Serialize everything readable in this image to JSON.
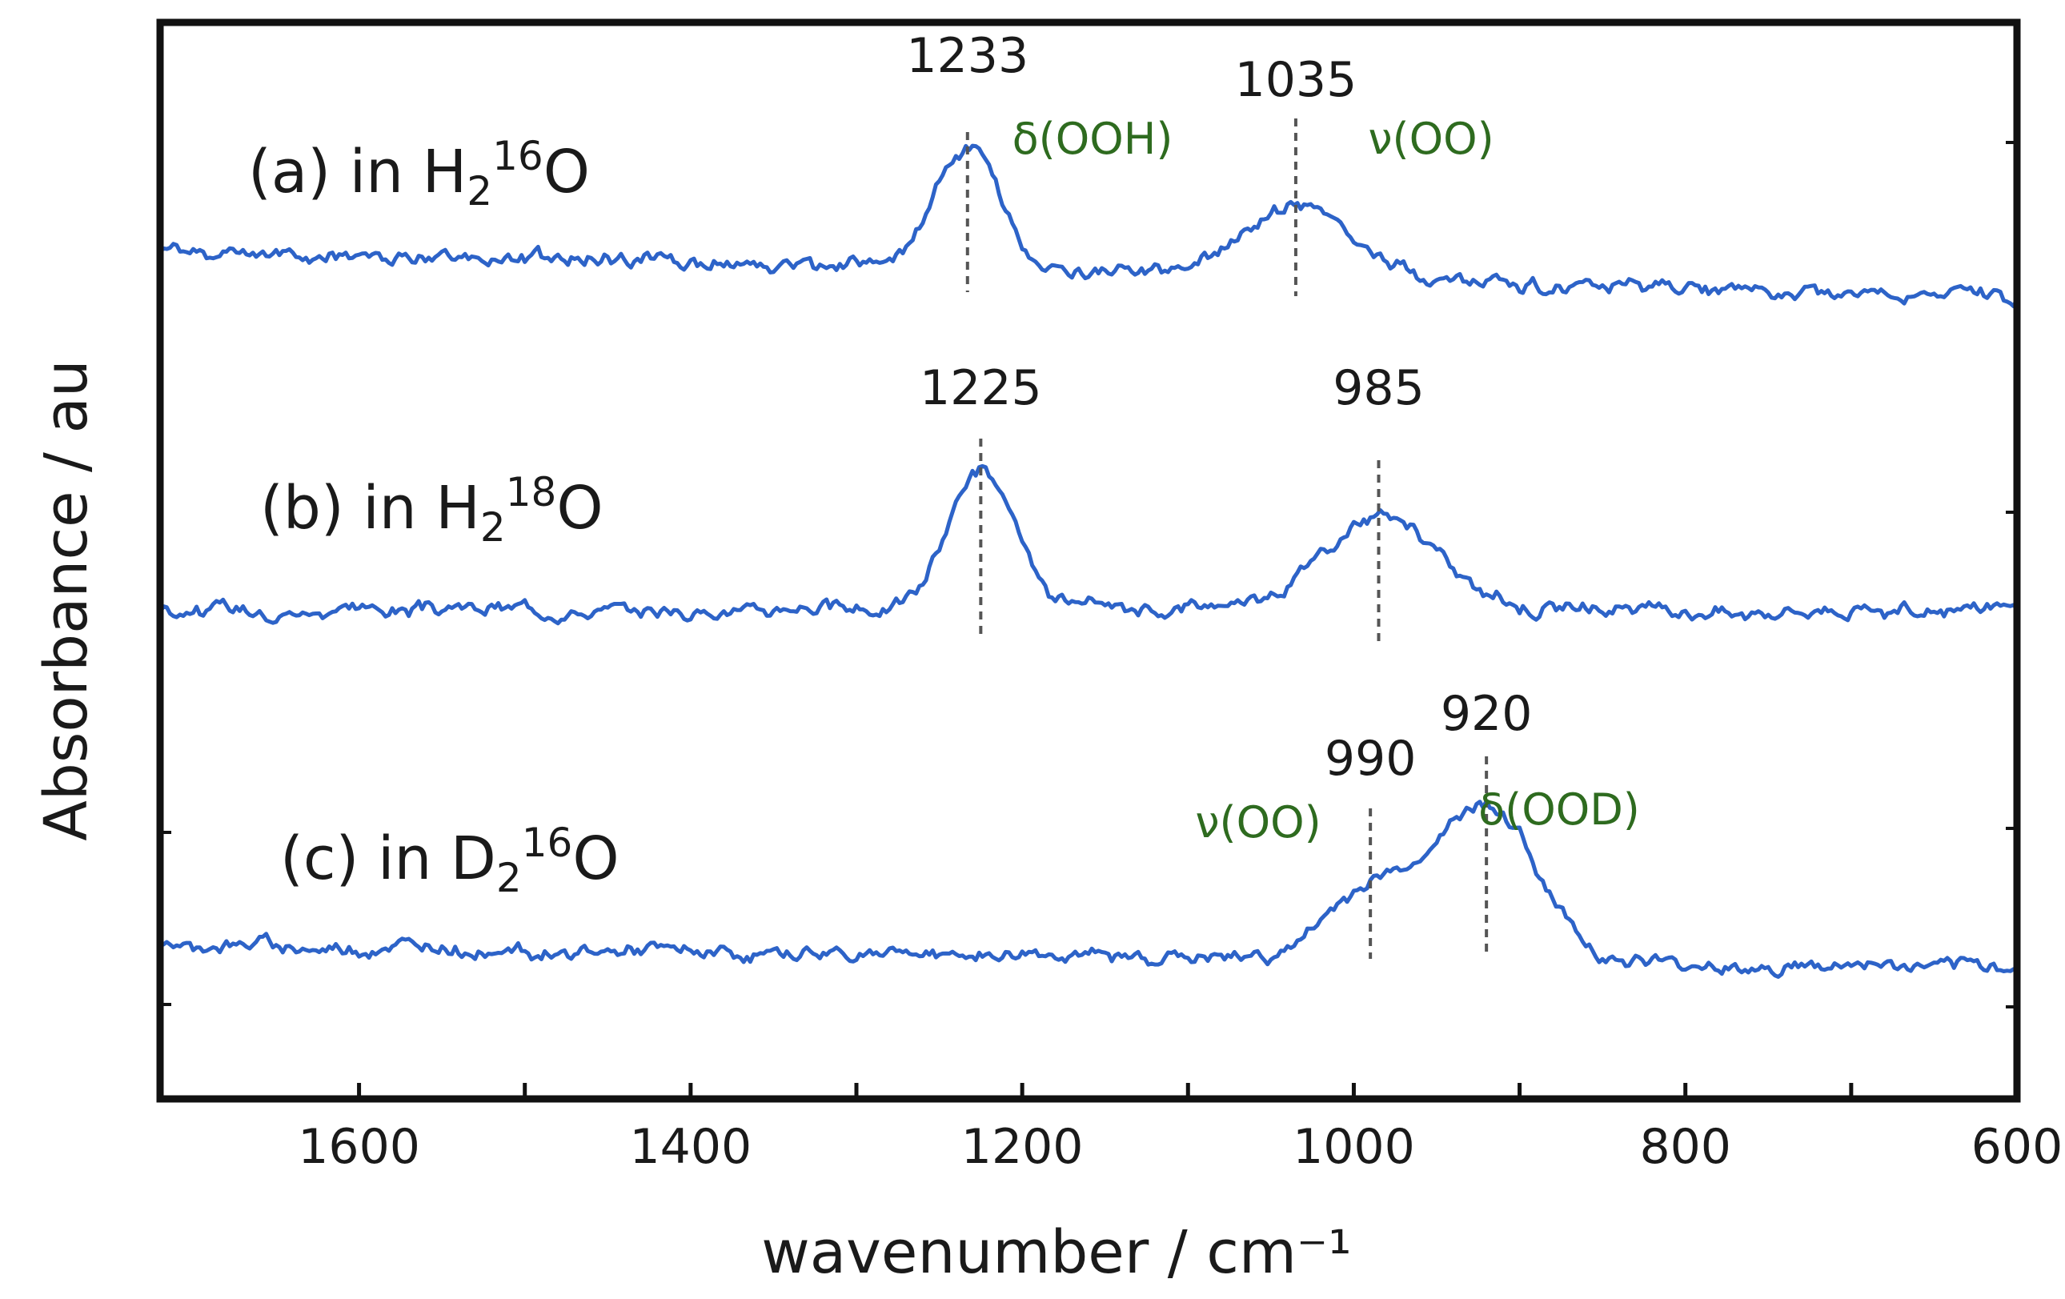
{
  "chart_data": {
    "type": "line",
    "title": "",
    "xlabel": "wavenumber / cm⁻¹",
    "ylabel": "Absorbance / au",
    "x_axis": {
      "reversed": true,
      "xlim": [
        1720,
        600
      ],
      "ticks": [
        1600,
        1500,
        1400,
        1300,
        1200,
        1100,
        1000,
        900,
        800,
        700,
        600
      ],
      "tick_labels": [
        "1600",
        "1400",
        "1200",
        "1000",
        "800",
        "600"
      ]
    },
    "grid": false,
    "line_color": "#2d63c8",
    "peak_line_color": "#555555",
    "band_label_color": "#2e6b1f",
    "series": [
      {
        "id": "a",
        "name": "(a) in H216O",
        "label_parts": {
          "prefix": "(a) in H",
          "sub": "2",
          "sup": "16",
          "suffix": "O"
        },
        "baseline_slope_per_1000": -0.55,
        "peaks": [
          {
            "x": 1233,
            "height": 1.6,
            "width": 20,
            "label": "1233"
          },
          {
            "x": 1035,
            "height": 0.95,
            "width": 34,
            "label": "1035"
          }
        ],
        "bands": [
          {
            "x": 1233,
            "label": "δ(OOH)"
          },
          {
            "x": 1035,
            "label": "ν(OO)"
          }
        ]
      },
      {
        "id": "b",
        "name": "(b) in H218O",
        "label_parts": {
          "prefix": "(b) in H",
          "sub": "2",
          "sup": "18",
          "suffix": "O"
        },
        "baseline_slope_per_1000": 0.0,
        "peaks": [
          {
            "x": 1225,
            "height": 1.85,
            "width": 20,
            "label": "1225"
          },
          {
            "x": 985,
            "height": 1.2,
            "width": 36,
            "label": "985"
          }
        ],
        "bands": []
      },
      {
        "id": "c",
        "name": "(c) in D216O",
        "label_parts": {
          "prefix": "(c) in D",
          "sub": "2",
          "sup": "16",
          "suffix": "O"
        },
        "baseline_slope_per_1000": -0.3,
        "peaks": [
          {
            "x": 990,
            "height": 0.9,
            "width": 26,
            "label": "990"
          },
          {
            "x": 920,
            "height": 2.1,
            "width": 30,
            "label": "920"
          }
        ],
        "bands": [
          {
            "x": 990,
            "label": "ν(OO)"
          },
          {
            "x": 920,
            "label": "δ(OOD)"
          }
        ]
      }
    ]
  }
}
